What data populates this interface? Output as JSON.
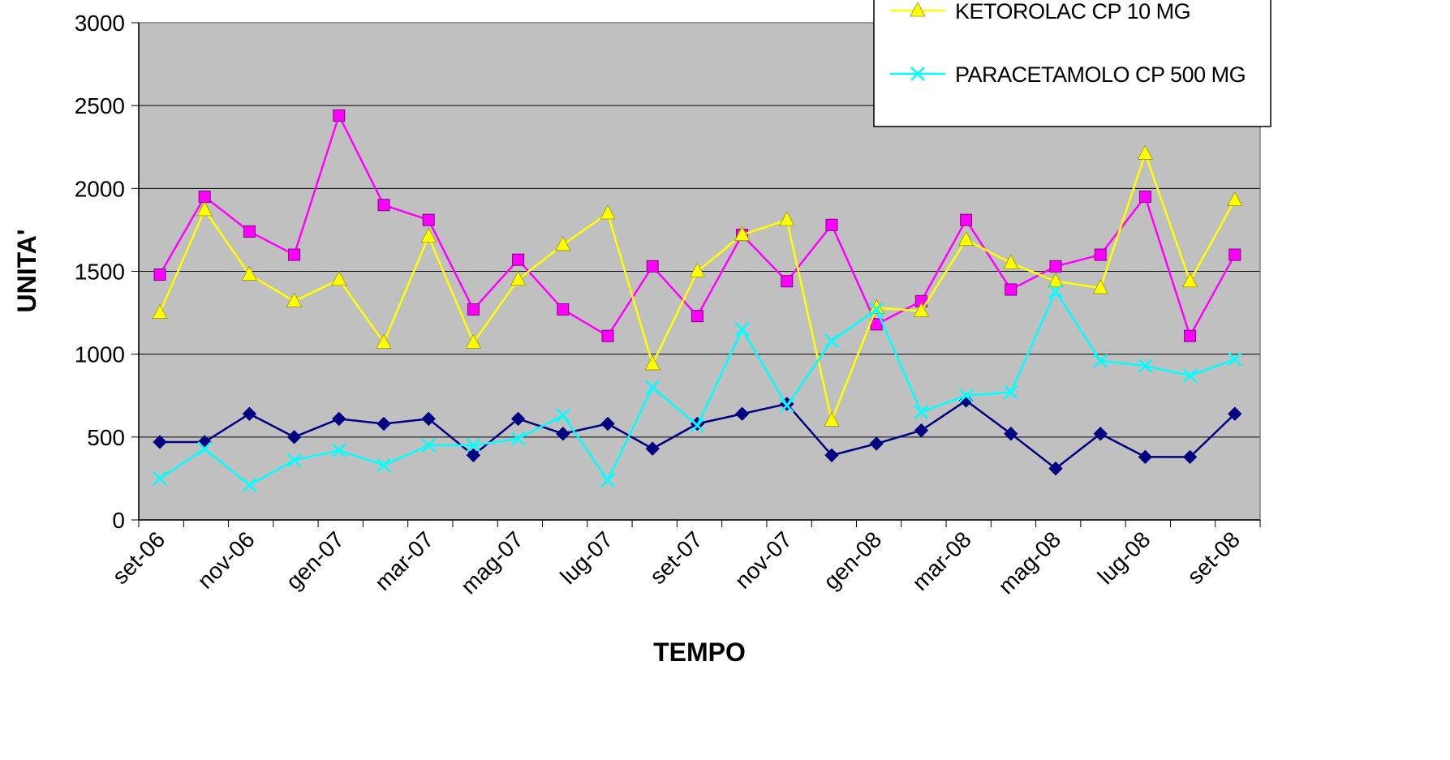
{
  "chart_data": {
    "type": "line",
    "xlabel": "TEMPO",
    "ylabel": "UNITA'",
    "ylim": [
      0,
      3000
    ],
    "yticks": [
      0,
      500,
      1000,
      1500,
      2000,
      2500,
      3000
    ],
    "grid": true,
    "legend_placement": "top-right",
    "plot_background": "#C0C0C0",
    "x_tick_labels": [
      "set-06",
      "nov-06",
      "gen-07",
      "mar-07",
      "mag-07",
      "lug-07",
      "set-07",
      "nov-07",
      "gen-08",
      "mar-08",
      "mag-08",
      "lug-08",
      "set-08"
    ],
    "x": [
      "set-06",
      "ott-06",
      "nov-06",
      "dic-06",
      "gen-07",
      "feb-07",
      "mar-07",
      "apr-07",
      "mag-07",
      "giu-07",
      "lug-07",
      "ago-07",
      "set-07",
      "ott-07",
      "nov-07",
      "dic-07",
      "gen-08",
      "feb-08",
      "mar-08",
      "apr-08",
      "mag-08",
      "giu-08",
      "lug-08",
      "ago-08",
      "set-08"
    ],
    "series": [
      {
        "color": "#000080",
        "marker": "diamond",
        "values": [
          470,
          470,
          640,
          500,
          610,
          580,
          610,
          390,
          610,
          520,
          580,
          430,
          580,
          640,
          700,
          390,
          460,
          540,
          720,
          520,
          310,
          520,
          380,
          380,
          640
        ]
      },
      {
        "color": "#FF00FF",
        "marker": "square",
        "values": [
          1480,
          1950,
          1740,
          1600,
          2440,
          1900,
          1810,
          1270,
          1570,
          1270,
          1110,
          1530,
          1230,
          1720,
          1440,
          1780,
          1180,
          1320,
          1810,
          1390,
          1530,
          1600,
          1950,
          1110,
          1600
        ]
      },
      {
        "name": "KETOROLAC CP 10 MG",
        "color": "#FFFF00",
        "marker": "triangle",
        "values": [
          1250,
          1870,
          1480,
          1320,
          1450,
          1070,
          1710,
          1070,
          1450,
          1660,
          1850,
          940,
          1500,
          1720,
          1810,
          600,
          1280,
          1260,
          1690,
          1550,
          1440,
          1400,
          2210,
          1440,
          1930
        ]
      },
      {
        "name": "PARACETAMOLO CP 500 MG",
        "color": "#00FFFF",
        "marker": "x",
        "values": [
          250,
          430,
          210,
          360,
          420,
          330,
          450,
          450,
          490,
          630,
          240,
          800,
          570,
          1150,
          690,
          1080,
          1270,
          650,
          750,
          770,
          1380,
          960,
          930,
          870,
          970
        ]
      }
    ]
  }
}
